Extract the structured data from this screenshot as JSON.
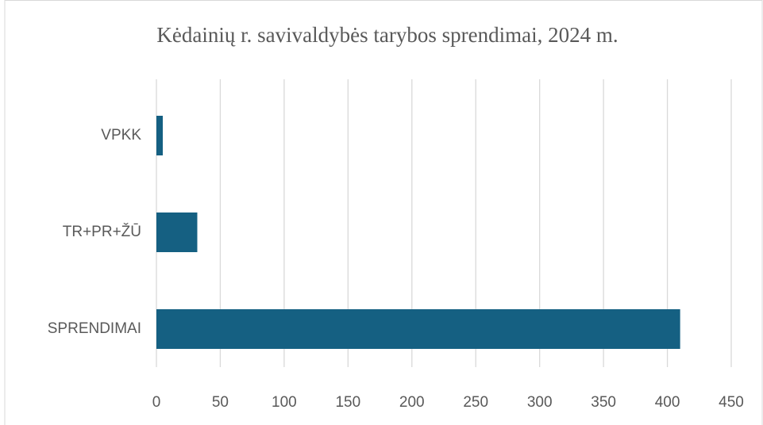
{
  "chart_data": {
    "type": "bar",
    "orientation": "horizontal",
    "title": "Kėdainių r. savivaldybės tarybos sprendimai, 2024 m.",
    "categories": [
      "VPKK",
      "TR+PR+ŽŪ",
      "SPRENDIMAI"
    ],
    "values": [
      5,
      32,
      410
    ],
    "color": "#156082",
    "xlim": [
      0,
      450
    ],
    "xticks": [
      0,
      50,
      100,
      150,
      200,
      250,
      300,
      350,
      400,
      450
    ],
    "grid": true
  }
}
